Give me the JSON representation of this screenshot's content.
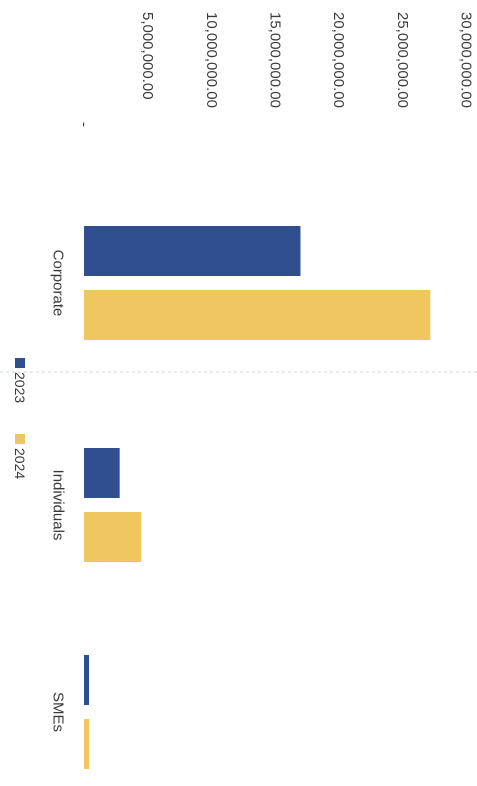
{
  "chart_data": {
    "type": "bar",
    "orientation": "horizontal",
    "categories": [
      "Corporate",
      "Individuals",
      "SMEs"
    ],
    "series": [
      {
        "name": "2023",
        "color": "#2f4f8e",
        "values": [
          17000000,
          2800000,
          300000
        ]
      },
      {
        "name": "2024",
        "color": "#f0c75e",
        "values": [
          27200000,
          4500000,
          300000
        ]
      }
    ],
    "xlim": [
      0,
      30000000
    ],
    "xticks": [
      "-",
      "5,000,000.00",
      "10,000,000.00",
      "15,000,000.00",
      "20,000,000.00",
      "25,000,000.00",
      "30,000,000.00"
    ],
    "xtick_values": [
      0,
      5000000,
      10000000,
      15000000,
      20000000,
      25000000,
      30000000
    ],
    "legend_position": "bottom",
    "grid": false,
    "title": "",
    "xlabel": "",
    "ylabel": "",
    "rotation": "90 degrees clockwise"
  }
}
